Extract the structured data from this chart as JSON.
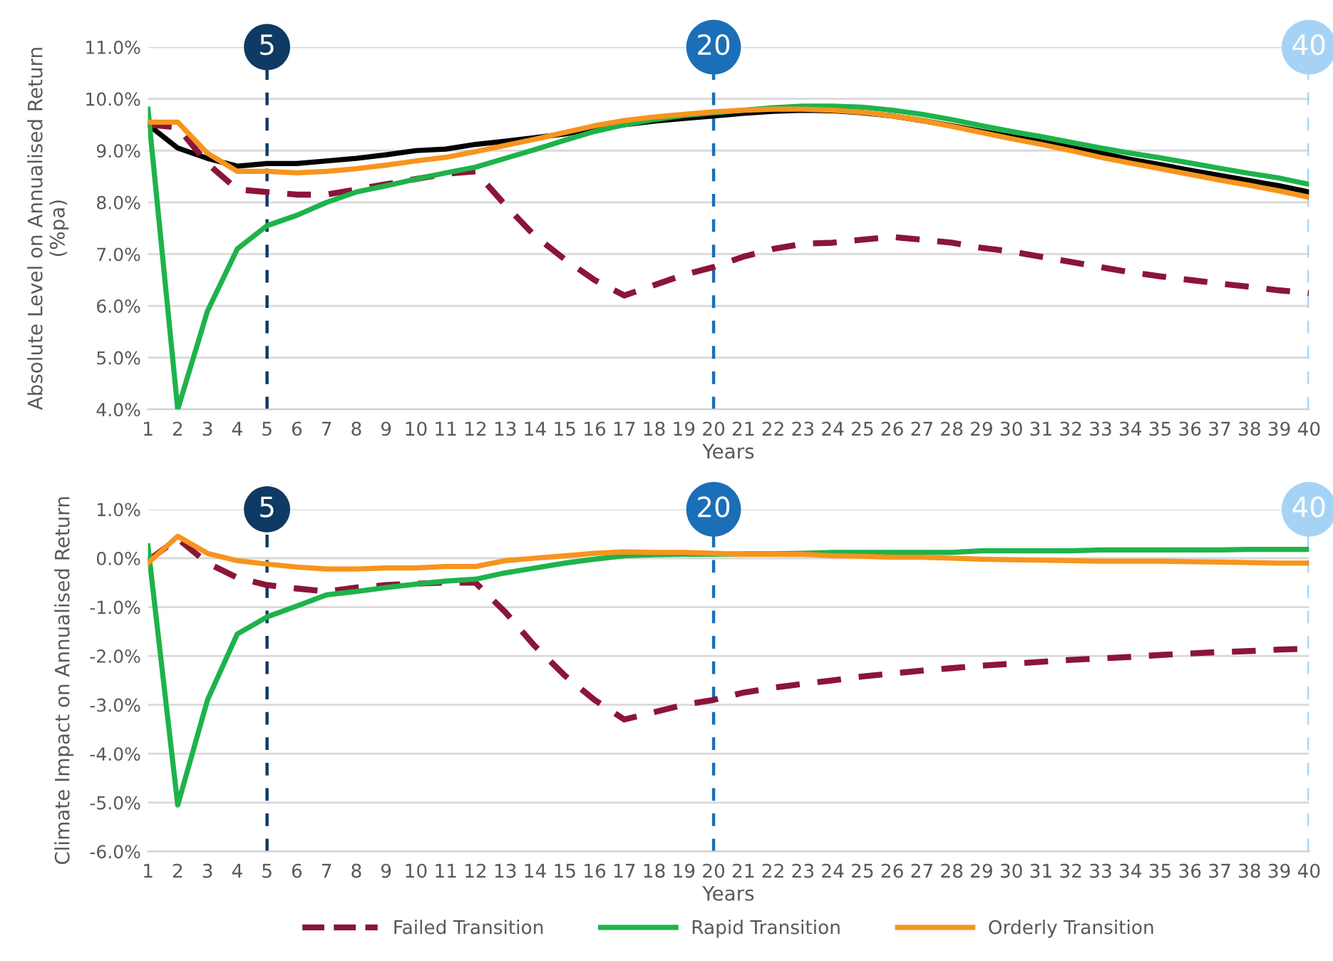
{
  "chart_data": [
    {
      "type": "line",
      "xlabel": "Years",
      "ylabel": "Absolute Level on Annualised Return\n(%pa)",
      "x": [
        1,
        2,
        3,
        4,
        5,
        6,
        7,
        8,
        9,
        10,
        11,
        12,
        13,
        14,
        15,
        16,
        17,
        18,
        19,
        20,
        21,
        22,
        23,
        24,
        25,
        26,
        27,
        28,
        29,
        30,
        31,
        32,
        33,
        34,
        35,
        36,
        37,
        38,
        39,
        40
      ],
      "xlim": [
        1,
        40
      ],
      "xticks": [
        1,
        2,
        3,
        4,
        5,
        6,
        7,
        8,
        9,
        10,
        11,
        12,
        13,
        14,
        15,
        16,
        17,
        18,
        19,
        20,
        21,
        22,
        23,
        24,
        25,
        26,
        27,
        28,
        29,
        30,
        31,
        32,
        33,
        34,
        35,
        36,
        37,
        38,
        39,
        40
      ],
      "ylim": [
        4,
        11
      ],
      "yticks": [
        {
          "value": 4,
          "label": "4.0%"
        },
        {
          "value": 5,
          "label": "5.0%"
        },
        {
          "value": 6,
          "label": "6.0%"
        },
        {
          "value": 7,
          "label": "7.0%"
        },
        {
          "value": 8,
          "label": "8.0%"
        },
        {
          "value": 9,
          "label": "9.0%"
        },
        {
          "value": 10,
          "label": "10.0%"
        },
        {
          "value": 11,
          "label": "11.0%"
        }
      ],
      "grid": "y",
      "ref_lines": [
        {
          "axis": "x",
          "value": 5,
          "label": "5",
          "color": "#0e3a63",
          "line_style": "dashed"
        },
        {
          "axis": "x",
          "value": 20,
          "label": "20",
          "color": "#1a6fb8",
          "line_style": "dashed"
        },
        {
          "axis": "x",
          "value": 40,
          "label": "40",
          "color": "#a6d3f5",
          "line_style": "dashed"
        }
      ],
      "series": [
        {
          "color": "#000000",
          "line_style": "solid",
          "values": [
            9.5,
            9.05,
            8.85,
            8.7,
            8.75,
            8.75,
            8.8,
            8.85,
            8.92,
            9.0,
            9.03,
            9.12,
            9.18,
            9.25,
            9.32,
            9.42,
            9.5,
            9.57,
            9.62,
            9.67,
            9.72,
            9.76,
            9.78,
            9.77,
            9.73,
            9.67,
            9.58,
            9.48,
            9.37,
            9.27,
            9.17,
            9.06,
            8.95,
            8.83,
            8.73,
            8.62,
            8.52,
            8.42,
            8.32,
            8.2
          ]
        },
        {
          "color": "#8b1538",
          "line_style": "dashed",
          "values": [
            9.5,
            9.45,
            8.75,
            8.25,
            8.2,
            8.15,
            8.15,
            8.25,
            8.35,
            8.45,
            8.55,
            8.6,
            7.95,
            7.35,
            6.9,
            6.5,
            6.2,
            6.4,
            6.6,
            6.75,
            6.95,
            7.1,
            7.2,
            7.22,
            7.28,
            7.33,
            7.28,
            7.22,
            7.12,
            7.05,
            6.95,
            6.85,
            6.75,
            6.65,
            6.57,
            6.5,
            6.43,
            6.37,
            6.3,
            6.25
          ]
        },
        {
          "color": "#1db34a",
          "line_style": "solid",
          "values": [
            9.8,
            4.0,
            5.9,
            7.1,
            7.55,
            7.75,
            8.0,
            8.2,
            8.32,
            8.45,
            8.57,
            8.68,
            8.85,
            9.02,
            9.2,
            9.37,
            9.5,
            9.6,
            9.68,
            9.73,
            9.78,
            9.83,
            9.86,
            9.86,
            9.84,
            9.78,
            9.7,
            9.6,
            9.48,
            9.37,
            9.27,
            9.16,
            9.05,
            8.95,
            8.86,
            8.76,
            8.66,
            8.56,
            8.47,
            8.35
          ]
        },
        {
          "color": "#f7941d",
          "line_style": "solid",
          "values": [
            9.55,
            9.55,
            8.95,
            8.6,
            8.6,
            8.57,
            8.6,
            8.65,
            8.72,
            8.8,
            8.87,
            8.98,
            9.1,
            9.22,
            9.35,
            9.48,
            9.58,
            9.65,
            9.7,
            9.75,
            9.78,
            9.8,
            9.8,
            9.78,
            9.74,
            9.67,
            9.58,
            9.47,
            9.35,
            9.23,
            9.12,
            9.0,
            8.87,
            8.76,
            8.65,
            8.54,
            8.43,
            8.33,
            8.22,
            8.1
          ]
        }
      ]
    },
    {
      "type": "line",
      "xlabel": "Years",
      "ylabel": "Climate Impact on Annualised Return",
      "x": [
        1,
        2,
        3,
        4,
        5,
        6,
        7,
        8,
        9,
        10,
        11,
        12,
        13,
        14,
        15,
        16,
        17,
        18,
        19,
        20,
        21,
        22,
        23,
        24,
        25,
        26,
        27,
        28,
        29,
        30,
        31,
        32,
        33,
        34,
        35,
        36,
        37,
        38,
        39,
        40
      ],
      "xlim": [
        1,
        40
      ],
      "xticks": [
        1,
        2,
        3,
        4,
        5,
        6,
        7,
        8,
        9,
        10,
        11,
        12,
        13,
        14,
        15,
        16,
        17,
        18,
        19,
        20,
        21,
        22,
        23,
        24,
        25,
        26,
        27,
        28,
        29,
        30,
        31,
        32,
        33,
        34,
        35,
        36,
        37,
        38,
        39,
        40
      ],
      "ylim": [
        -6,
        1
      ],
      "yticks": [
        {
          "value": -6,
          "label": "-6.0%"
        },
        {
          "value": -5,
          "label": "-5.0%"
        },
        {
          "value": -4,
          "label": "-4.0%"
        },
        {
          "value": -3,
          "label": "-3.0%"
        },
        {
          "value": -2,
          "label": "-2.0%"
        },
        {
          "value": -1,
          "label": "-1.0%"
        },
        {
          "value": 0,
          "label": "0.0%"
        },
        {
          "value": 1,
          "label": "1.0%"
        }
      ],
      "grid": "y",
      "legend": "bottom",
      "ref_lines": [
        {
          "axis": "x",
          "value": 5,
          "label": "5",
          "color": "#0e3a63",
          "line_style": "dashed"
        },
        {
          "axis": "x",
          "value": 20,
          "label": "20",
          "color": "#1a6fb8",
          "line_style": "dashed"
        },
        {
          "axis": "x",
          "value": 40,
          "label": "40",
          "color": "#a6d3f5",
          "line_style": "dashed"
        }
      ],
      "series": [
        {
          "name": "Failed Transition",
          "color": "#8b1538",
          "line_style": "dashed",
          "values": [
            -0.05,
            0.4,
            -0.1,
            -0.4,
            -0.55,
            -0.62,
            -0.68,
            -0.6,
            -0.55,
            -0.52,
            -0.5,
            -0.5,
            -1.1,
            -1.8,
            -2.4,
            -2.9,
            -3.3,
            -3.15,
            -3.0,
            -2.9,
            -2.75,
            -2.65,
            -2.57,
            -2.5,
            -2.42,
            -2.36,
            -2.3,
            -2.25,
            -2.2,
            -2.16,
            -2.12,
            -2.08,
            -2.05,
            -2.02,
            -1.98,
            -1.95,
            -1.92,
            -1.9,
            -1.87,
            -1.85
          ]
        },
        {
          "name": "Rapid Transition",
          "color": "#1db34a",
          "line_style": "solid",
          "values": [
            0.25,
            -5.05,
            -2.9,
            -1.55,
            -1.2,
            -0.98,
            -0.75,
            -0.68,
            -0.6,
            -0.53,
            -0.47,
            -0.43,
            -0.3,
            -0.2,
            -0.1,
            -0.02,
            0.05,
            0.07,
            0.08,
            0.08,
            0.09,
            0.09,
            0.1,
            0.12,
            0.12,
            0.12,
            0.12,
            0.12,
            0.15,
            0.15,
            0.15,
            0.15,
            0.17,
            0.17,
            0.17,
            0.17,
            0.17,
            0.18,
            0.18,
            0.18
          ]
        },
        {
          "name": "Orderly Transition",
          "color": "#f7941d",
          "line_style": "solid",
          "values": [
            -0.1,
            0.45,
            0.1,
            -0.05,
            -0.12,
            -0.18,
            -0.22,
            -0.22,
            -0.2,
            -0.2,
            -0.17,
            -0.17,
            -0.05,
            0.0,
            0.05,
            0.1,
            0.13,
            0.12,
            0.12,
            0.1,
            0.08,
            0.08,
            0.08,
            0.05,
            0.04,
            0.02,
            0.02,
            0.0,
            -0.02,
            -0.03,
            -0.04,
            -0.05,
            -0.06,
            -0.06,
            -0.06,
            -0.07,
            -0.08,
            -0.09,
            -0.1,
            -0.1
          ]
        }
      ]
    }
  ]
}
